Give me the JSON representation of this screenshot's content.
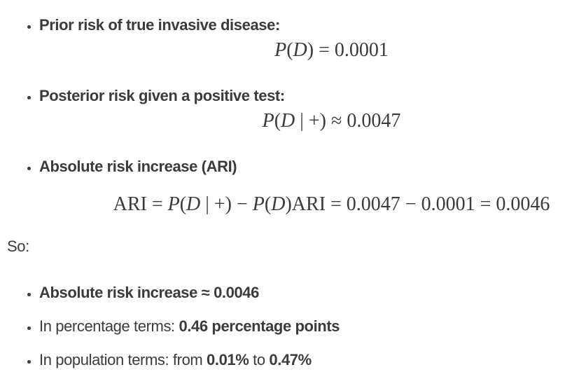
{
  "page": {
    "background_color": "#ffffff",
    "text_color": "#3b3b3b"
  },
  "risk_list": {
    "items": [
      {
        "title": "Prior risk of true invasive disease:",
        "formula_plain": "P(D) = 0.0001",
        "formula": [
          {
            "t": "P",
            "i": true
          },
          {
            "t": "(",
            "i": false
          },
          {
            "t": "D",
            "i": true
          },
          {
            "t": ") = 0.0001",
            "i": false
          }
        ]
      },
      {
        "title": "Posterior risk given a positive test:",
        "formula_plain": "P(D | +) ≈ 0.0047",
        "formula": [
          {
            "t": "P",
            "i": true
          },
          {
            "t": "(",
            "i": false
          },
          {
            "t": "D",
            "i": true
          },
          {
            "t": " | +) ≈ 0.0047",
            "i": false
          }
        ]
      },
      {
        "title": "Absolute risk increase (ARI)",
        "formula_plain": "ARI = P(D | +) − P(D)ARI = 0.0047 − 0.0001 = 0.0046",
        "formula": [
          {
            "t": "ARI = ",
            "i": false
          },
          {
            "t": "P",
            "i": true
          },
          {
            "t": "(",
            "i": false
          },
          {
            "t": "D",
            "i": true
          },
          {
            "t": " | +) − ",
            "i": false
          },
          {
            "t": "P",
            "i": true
          },
          {
            "t": "(",
            "i": false
          },
          {
            "t": "D",
            "i": true
          },
          {
            "t": ")ARI = 0.0047 − 0.0001 = 0.0046",
            "i": false
          }
        ]
      }
    ]
  },
  "so_paragraph": {
    "text": "So:"
  },
  "so_list": {
    "items": [
      {
        "bold_full": "Absolute risk increase ≈ 0.0046"
      },
      {
        "prefix": "In percentage terms: ",
        "bold": "0.46 percentage points"
      },
      {
        "prefix": "In population terms: from ",
        "bold_from": "0.01%",
        "mid": " to ",
        "bold_to": "0.47%"
      }
    ]
  }
}
